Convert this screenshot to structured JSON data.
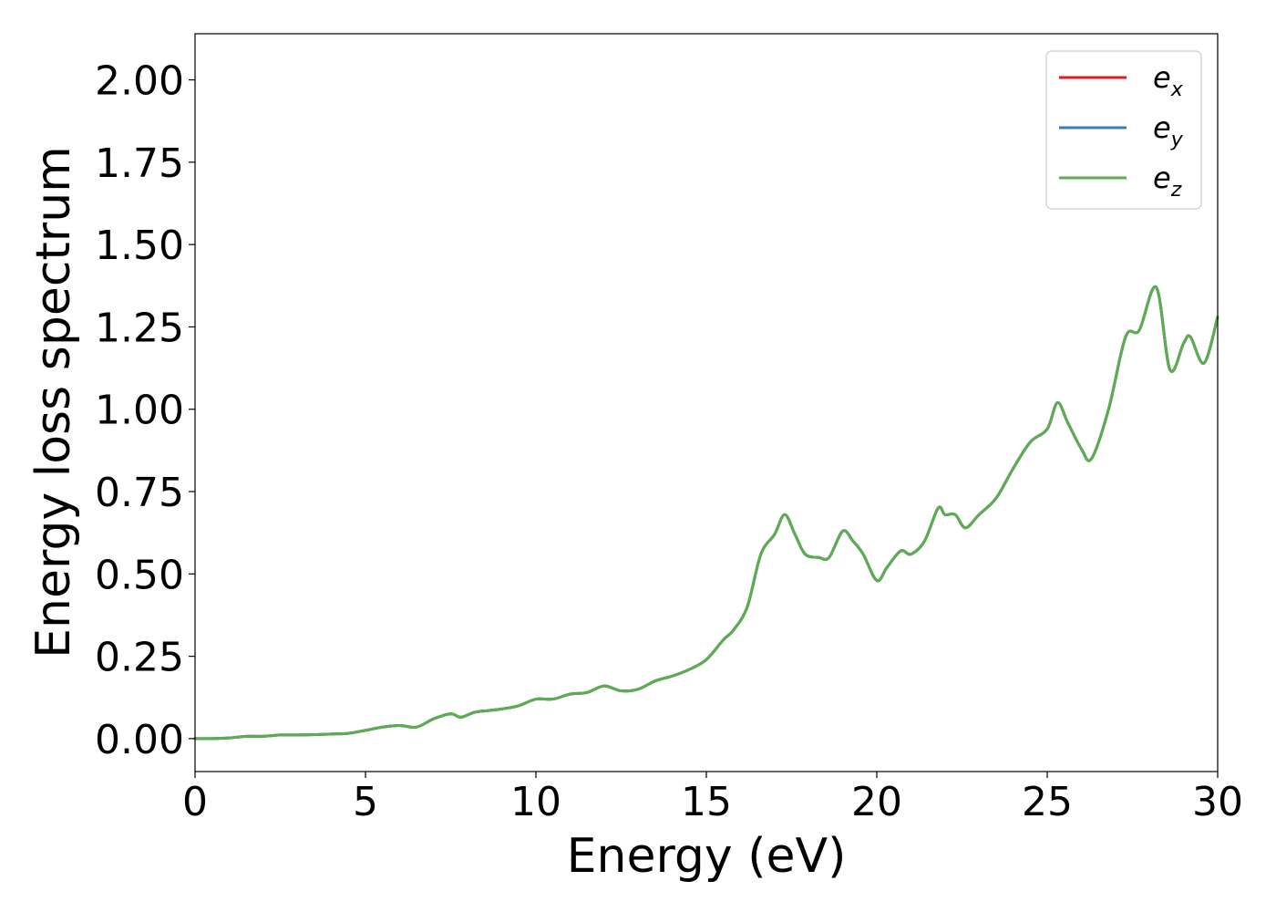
{
  "chart_data": {
    "type": "line",
    "title": "",
    "xlabel": "Energy (eV)",
    "ylabel": "Energy loss spectrum",
    "xlim": [
      0,
      30
    ],
    "ylim": [
      -0.1,
      2.14
    ],
    "xticks": [
      0,
      5,
      10,
      15,
      20,
      25,
      30
    ],
    "xtick_labels": [
      "0",
      "5",
      "10",
      "15",
      "20",
      "25",
      "30"
    ],
    "yticks": [
      0.0,
      0.25,
      0.5,
      0.75,
      1.0,
      1.25,
      1.5,
      1.75,
      2.0
    ],
    "ytick_labels": [
      "0.00",
      "0.25",
      "0.50",
      "0.75",
      "1.00",
      "1.25",
      "1.50",
      "1.75",
      "2.00"
    ],
    "grid": false,
    "legend_position": "top-right",
    "x": [
      0,
      0.5,
      1.0,
      1.5,
      2.0,
      2.5,
      3.0,
      3.5,
      4.0,
      4.5,
      5.0,
      5.5,
      6.0,
      6.5,
      7.0,
      7.5,
      7.8,
      8.2,
      8.6,
      9.0,
      9.5,
      10.0,
      10.5,
      11.0,
      11.5,
      12.0,
      12.5,
      13.0,
      13.5,
      14.0,
      14.5,
      15.0,
      15.5,
      15.8,
      16.2,
      16.6,
      17.0,
      17.3,
      17.6,
      17.9,
      18.3,
      18.6,
      19.0,
      19.3,
      19.6,
      20.0,
      20.3,
      20.7,
      21.0,
      21.4,
      21.8,
      22.0,
      22.3,
      22.6,
      23.0,
      23.5,
      24.0,
      24.5,
      25.0,
      25.3,
      25.6,
      26.0,
      26.3,
      26.8,
      27.3,
      27.7,
      28.2,
      28.6,
      29.0,
      29.2,
      29.6,
      30.0
    ],
    "series": [
      {
        "name": "e_x",
        "label_base": "e",
        "label_sub": "x",
        "color": "#e41a1c",
        "values": [
          0.0,
          0.0,
          0.002,
          0.007,
          0.007,
          0.011,
          0.011,
          0.012,
          0.014,
          0.016,
          0.025,
          0.035,
          0.04,
          0.035,
          0.06,
          0.075,
          0.065,
          0.08,
          0.085,
          0.09,
          0.1,
          0.12,
          0.12,
          0.135,
          0.14,
          0.16,
          0.145,
          0.15,
          0.175,
          0.19,
          0.21,
          0.24,
          0.3,
          0.33,
          0.4,
          0.56,
          0.62,
          0.68,
          0.62,
          0.56,
          0.55,
          0.55,
          0.63,
          0.6,
          0.56,
          0.48,
          0.52,
          0.57,
          0.56,
          0.6,
          0.7,
          0.68,
          0.68,
          0.64,
          0.68,
          0.73,
          0.82,
          0.9,
          0.94,
          1.02,
          0.96,
          0.88,
          0.85,
          1.0,
          1.22,
          1.24,
          1.37,
          1.12,
          1.2,
          1.22,
          1.14,
          1.28
        ]
      },
      {
        "name": "e_y",
        "label_base": "e",
        "label_sub": "y",
        "color": "#377eb8",
        "values": [
          0.0,
          0.0,
          0.002,
          0.007,
          0.007,
          0.011,
          0.011,
          0.012,
          0.014,
          0.016,
          0.025,
          0.035,
          0.04,
          0.035,
          0.06,
          0.075,
          0.065,
          0.08,
          0.085,
          0.09,
          0.1,
          0.12,
          0.12,
          0.135,
          0.14,
          0.16,
          0.145,
          0.15,
          0.175,
          0.19,
          0.21,
          0.24,
          0.3,
          0.33,
          0.4,
          0.56,
          0.62,
          0.68,
          0.62,
          0.56,
          0.55,
          0.55,
          0.63,
          0.6,
          0.56,
          0.48,
          0.52,
          0.57,
          0.56,
          0.6,
          0.7,
          0.68,
          0.68,
          0.64,
          0.68,
          0.73,
          0.82,
          0.9,
          0.94,
          1.02,
          0.96,
          0.88,
          0.85,
          1.0,
          1.22,
          1.24,
          1.37,
          1.12,
          1.2,
          1.22,
          1.14,
          1.28
        ]
      },
      {
        "name": "e_z",
        "label_base": "e",
        "label_sub": "z",
        "color": "#5aae50",
        "values": [
          0.0,
          0.0,
          0.002,
          0.007,
          0.007,
          0.011,
          0.011,
          0.012,
          0.014,
          0.016,
          0.025,
          0.035,
          0.04,
          0.035,
          0.06,
          0.075,
          0.065,
          0.08,
          0.085,
          0.09,
          0.1,
          0.12,
          0.12,
          0.135,
          0.14,
          0.16,
          0.145,
          0.15,
          0.175,
          0.19,
          0.21,
          0.24,
          0.3,
          0.33,
          0.4,
          0.56,
          0.62,
          0.68,
          0.62,
          0.56,
          0.55,
          0.55,
          0.63,
          0.6,
          0.56,
          0.48,
          0.52,
          0.57,
          0.56,
          0.6,
          0.7,
          0.68,
          0.68,
          0.64,
          0.68,
          0.73,
          0.82,
          0.9,
          0.94,
          1.02,
          0.96,
          0.88,
          0.85,
          1.0,
          1.22,
          1.24,
          1.37,
          1.12,
          1.2,
          1.22,
          1.14,
          1.28
        ]
      }
    ]
  }
}
